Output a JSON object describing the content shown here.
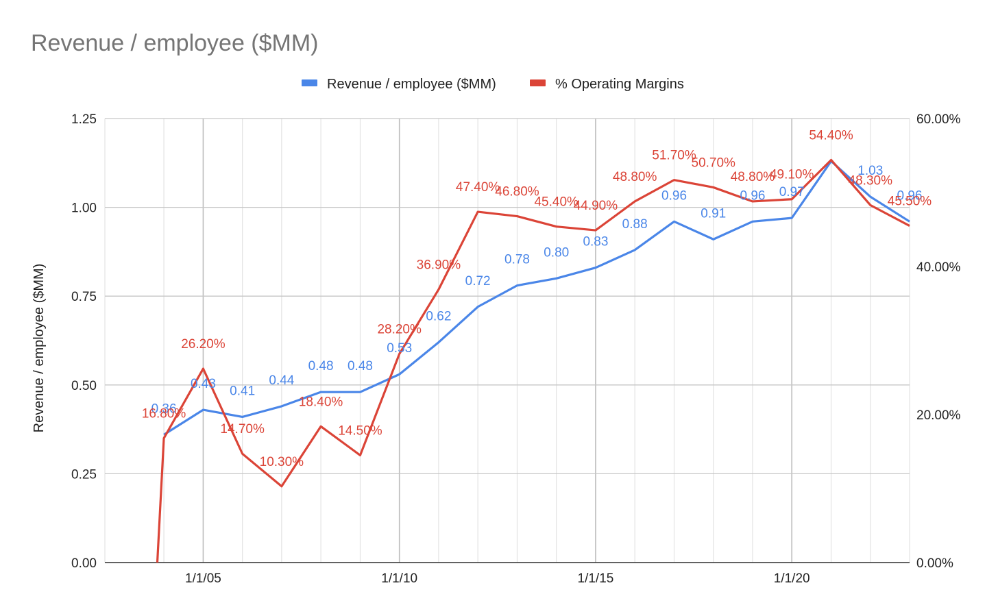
{
  "chart_data": {
    "type": "line",
    "title": "Revenue / employee ($MM)",
    "legend_position": "top",
    "grid": true,
    "x": [
      "1/1/04",
      "1/1/05",
      "1/1/06",
      "1/1/07",
      "1/1/08",
      "1/1/09",
      "1/1/10",
      "1/1/11",
      "1/1/12",
      "1/1/13",
      "1/1/14",
      "1/1/15",
      "1/1/16",
      "1/1/17",
      "1/1/18",
      "1/1/19",
      "1/1/20",
      "1/1/21",
      "1/1/22",
      "1/1/23"
    ],
    "x_tick_labels": [
      "1/1/05",
      "1/1/10",
      "1/1/15",
      "1/1/20"
    ],
    "x_range": [
      "7/1/02",
      "1/1/23"
    ],
    "left_axis": {
      "label": "Revenue / employee ($MM)",
      "range": [
        0,
        1.25
      ],
      "ticks": [
        "0.00",
        "0.25",
        "0.50",
        "0.75",
        "1.00",
        "1.25"
      ]
    },
    "right_axis": {
      "label": "",
      "range": [
        0,
        60
      ],
      "ticks": [
        "0.00%",
        "20.00%",
        "40.00%",
        "60.00%"
      ]
    },
    "series": [
      {
        "name": "Revenue / employee ($MM)",
        "axis": "left",
        "color": "#4a86e8",
        "values": [
          0.36,
          0.43,
          0.41,
          0.44,
          0.48,
          0.48,
          0.53,
          0.62,
          0.72,
          0.78,
          0.8,
          0.83,
          0.88,
          0.96,
          0.91,
          0.96,
          0.97,
          1.13,
          1.03,
          0.96
        ],
        "labels": [
          "0.36",
          "0.43",
          "0.41",
          "0.44",
          "0.48",
          "0.48",
          "0.53",
          "0.62",
          "0.72",
          "0.78",
          "0.80",
          "0.83",
          "0.88",
          "0.96",
          "0.91",
          "0.96",
          "0.97",
          "",
          "1.03",
          "0.96"
        ]
      },
      {
        "name": "% Operating Margins",
        "axis": "right",
        "color": "#db4437",
        "extra_start": {
          "x": "11/1/03",
          "value": 0
        },
        "values": [
          16.8,
          26.2,
          14.7,
          10.3,
          18.4,
          14.5,
          28.2,
          36.9,
          47.4,
          46.8,
          45.4,
          44.9,
          48.8,
          51.7,
          50.7,
          48.8,
          49.1,
          54.4,
          48.3,
          45.5
        ],
        "labels": [
          "16.80%",
          "26.20%",
          "14.70%",
          "10.30%",
          "18.40%",
          "14.50%",
          "28.20%",
          "36.90%",
          "47.40%",
          "46.80%",
          "45.40%",
          "44.90%",
          "48.80%",
          "51.70%",
          "50.70%",
          "48.80%",
          "49.10%",
          "54.40%",
          "48.30%",
          "45.50%"
        ]
      }
    ]
  }
}
